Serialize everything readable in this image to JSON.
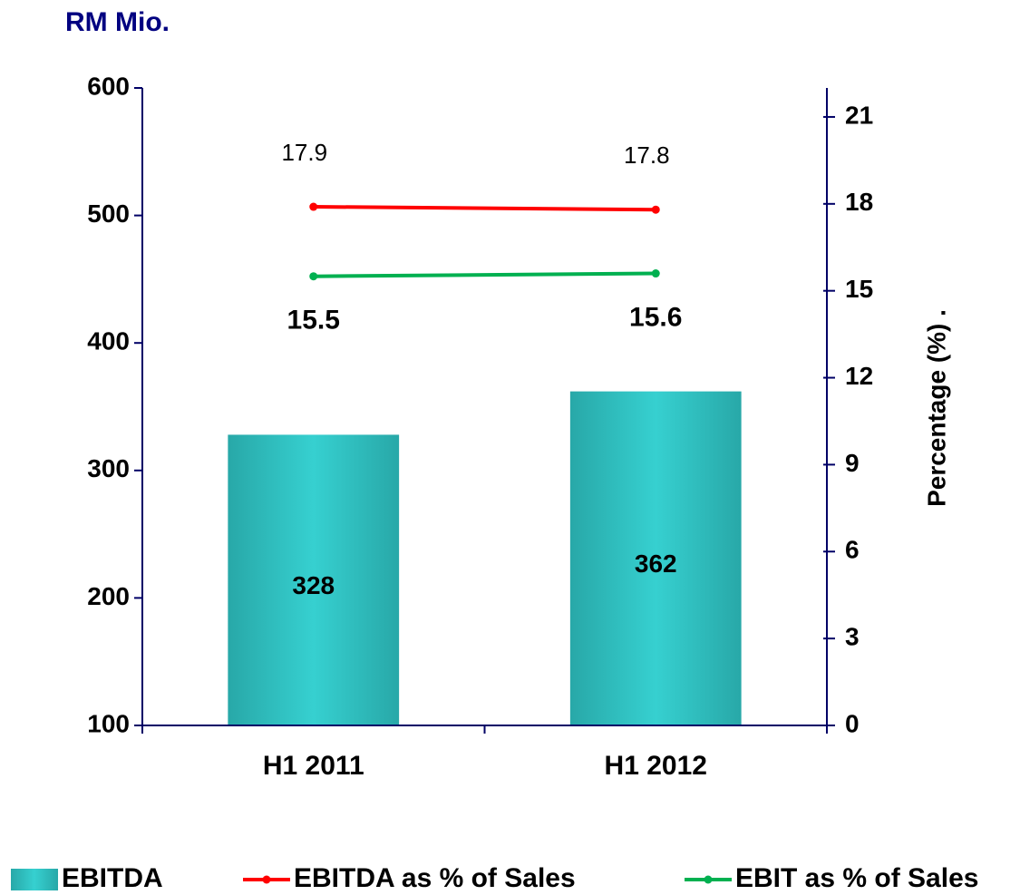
{
  "chart_data": {
    "type": "bar-line",
    "title": "RM Mio.",
    "y2label": "Percentage (%) .",
    "categories": [
      "H1 2011",
      "H1 2012"
    ],
    "series": [
      {
        "name": "EBITDA",
        "type": "bar",
        "color": "#33cccc",
        "values": [
          328,
          362
        ]
      },
      {
        "name": "EBITDA as % of Sales",
        "type": "line",
        "axis": "y2",
        "color": "#ff0000",
        "values": [
          17.9,
          17.8
        ]
      },
      {
        "name": "EBIT as % of Sales",
        "type": "line",
        "axis": "y2",
        "color": "#00b050",
        "values": [
          15.5,
          15.6
        ]
      }
    ],
    "ylim": [
      100,
      600
    ],
    "yticks": [
      100,
      200,
      300,
      400,
      500,
      600
    ],
    "y2lim": [
      0,
      22
    ],
    "y2ticks": [
      0,
      3,
      6,
      9,
      12,
      15,
      18,
      21
    ],
    "grid": false,
    "legend": "bottom"
  }
}
